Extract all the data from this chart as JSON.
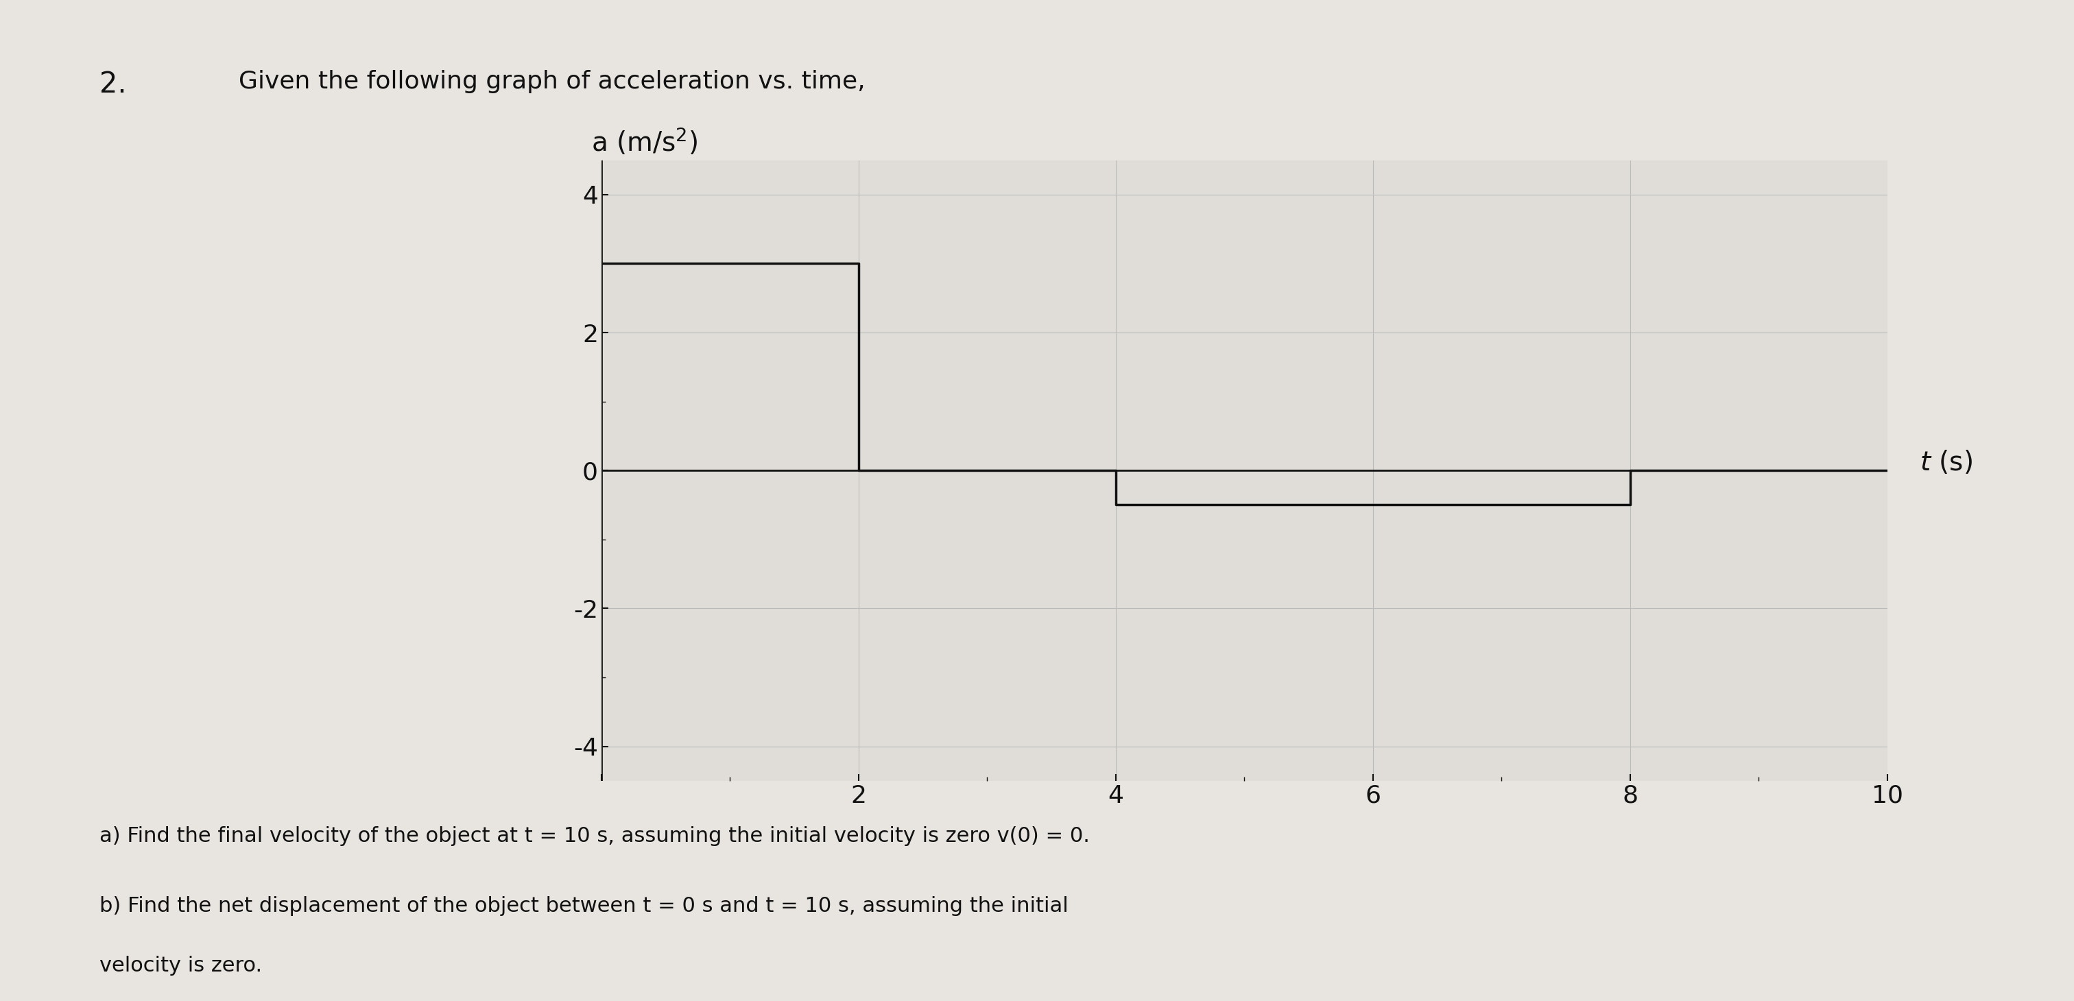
{
  "title": "Given the following graph of acceleration vs. time,",
  "problem_number": "2.",
  "ylim": [
    -4.5,
    4.5
  ],
  "xlim": [
    0,
    10
  ],
  "yticks": [
    -4,
    -2,
    0,
    2,
    4
  ],
  "xticks": [
    0,
    2,
    4,
    6,
    8,
    10
  ],
  "step_x": [
    0,
    2,
    2,
    4,
    4,
    8,
    8,
    10
  ],
  "step_y": [
    3,
    3,
    0,
    0,
    -0.5,
    -0.5,
    0,
    0
  ],
  "grid_color": "#bbbbbb",
  "line_color": "#111111",
  "bg_color": "#e0ddd8",
  "paper_color": "#e8e5e0",
  "text_color": "#111111",
  "annotation_a": "a) Find the final velocity of the object at t = 10 s, assuming the initial velocity is zero v(0) = 0.",
  "annotation_b": "b) Find the net displacement of the object between t = 0 s and t = 10 s, assuming the initial",
  "annotation_c": "velocity is zero."
}
